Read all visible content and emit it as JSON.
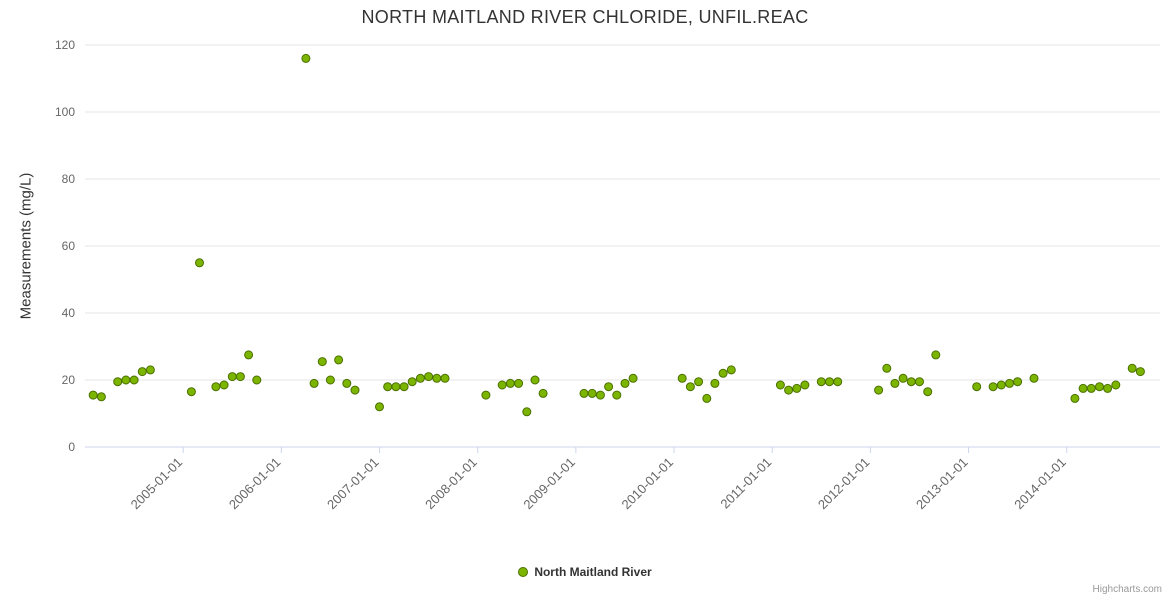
{
  "title": "NORTH MAITLAND RIVER CHLORIDE, UNFIL.REAC",
  "y_axis_title": "Measurements (mg/L)",
  "legend": {
    "label": "North Maitland River"
  },
  "credits": "Highcharts.com",
  "styles": {
    "point_fill": "#7cb500",
    "point_stroke": "#4a7000",
    "grid_color": "#e6e6e6",
    "axis_color": "#ccd6eb",
    "label_color": "#666666",
    "title_color": "#333333"
  },
  "chart_data": {
    "type": "scatter",
    "title": "NORTH MAITLAND RIVER CHLORIDE, UNFIL.REAC",
    "xlabel": "",
    "ylabel": "Measurements (mg/L)",
    "ylim": [
      0,
      120
    ],
    "y_ticks": [
      0,
      20,
      40,
      60,
      80,
      100,
      120
    ],
    "x_range": [
      2004.0,
      2014.95
    ],
    "x_tick_labels": [
      "2005-01-01",
      "2006-01-01",
      "2007-01-01",
      "2008-01-01",
      "2009-01-01",
      "2010-01-01",
      "2011-01-01",
      "2012-01-01",
      "2013-01-01",
      "2014-01-01"
    ],
    "grid": "horizontal",
    "legend_position": "bottom-center",
    "series": [
      {
        "name": "North Maitland River",
        "data": [
          [
            "2004-02",
            15.5
          ],
          [
            "2004-03",
            15
          ],
          [
            "2004-05",
            19.5
          ],
          [
            "2004-06",
            20
          ],
          [
            "2004-07",
            20
          ],
          [
            "2004-08",
            22.5
          ],
          [
            "2004-09",
            23
          ],
          [
            "2005-02",
            16.5
          ],
          [
            "2005-03",
            55
          ],
          [
            "2005-05",
            18
          ],
          [
            "2005-06",
            18.5
          ],
          [
            "2005-07",
            21
          ],
          [
            "2005-08",
            21
          ],
          [
            "2005-09",
            27.5
          ],
          [
            "2005-10",
            20
          ],
          [
            "2006-04",
            116
          ],
          [
            "2006-05",
            19
          ],
          [
            "2006-06",
            25.5
          ],
          [
            "2006-07",
            20
          ],
          [
            "2006-08",
            26
          ],
          [
            "2006-09",
            19
          ],
          [
            "2006-10",
            17
          ],
          [
            "2007-01",
            12
          ],
          [
            "2007-02",
            18
          ],
          [
            "2007-03",
            18
          ],
          [
            "2007-04",
            18
          ],
          [
            "2007-05",
            19.5
          ],
          [
            "2007-06",
            20.5
          ],
          [
            "2007-07",
            21
          ],
          [
            "2007-08",
            20.5
          ],
          [
            "2007-09",
            20.5
          ],
          [
            "2008-02",
            15.5
          ],
          [
            "2008-04",
            18.5
          ],
          [
            "2008-05",
            19
          ],
          [
            "2008-06",
            19
          ],
          [
            "2008-07",
            10.5
          ],
          [
            "2008-08",
            20
          ],
          [
            "2008-09",
            16
          ],
          [
            "2009-02",
            16
          ],
          [
            "2009-03",
            16
          ],
          [
            "2009-04",
            15.5
          ],
          [
            "2009-05",
            18
          ],
          [
            "2009-06",
            15.5
          ],
          [
            "2009-07",
            19
          ],
          [
            "2009-08",
            20.5
          ],
          [
            "2010-02",
            20.5
          ],
          [
            "2010-03",
            18
          ],
          [
            "2010-04",
            19.5
          ],
          [
            "2010-05",
            14.5
          ],
          [
            "2010-06",
            19
          ],
          [
            "2010-07",
            22
          ],
          [
            "2010-08",
            23
          ],
          [
            "2011-02",
            18.5
          ],
          [
            "2011-03",
            17
          ],
          [
            "2011-04",
            17.5
          ],
          [
            "2011-05",
            18.5
          ],
          [
            "2011-07",
            19.5
          ],
          [
            "2011-08",
            19.5
          ],
          [
            "2011-09",
            19.5
          ],
          [
            "2012-02",
            17
          ],
          [
            "2012-03",
            23.5
          ],
          [
            "2012-04",
            19
          ],
          [
            "2012-05",
            20.5
          ],
          [
            "2012-06",
            19.5
          ],
          [
            "2012-07",
            19.5
          ],
          [
            "2012-08",
            16.5
          ],
          [
            "2012-09",
            27.5
          ],
          [
            "2013-02",
            18
          ],
          [
            "2013-04",
            18
          ],
          [
            "2013-05",
            18.5
          ],
          [
            "2013-06",
            19
          ],
          [
            "2013-07",
            19.5
          ],
          [
            "2013-09",
            20.5
          ],
          [
            "2014-02",
            14.5
          ],
          [
            "2014-03",
            17.5
          ],
          [
            "2014-04",
            17.5
          ],
          [
            "2014-05",
            18
          ],
          [
            "2014-06",
            17.5
          ],
          [
            "2014-07",
            18.5
          ],
          [
            "2014-09",
            23.5
          ],
          [
            "2014-10",
            22.5
          ]
        ]
      }
    ]
  }
}
